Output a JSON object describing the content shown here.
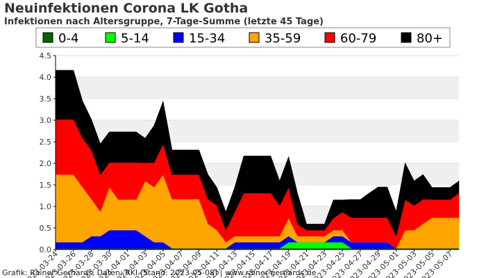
{
  "chart_data": {
    "type": "area",
    "stacked": true,
    "title": "Neuinfektionen Corona LK Gotha",
    "subtitle": "Infektionen nach Altersgruppe, 7-Tage-Summe (letzte 45 Tage)",
    "credit": "Grafik: Rainer Gerhards, Daten: RKI (Stand: 2023-05-08) | www.rainer-gerhards.de",
    "ylim": [
      0,
      4.5
    ],
    "yticks": [
      "0.0",
      "0.5",
      "1.0",
      "1.5",
      "2.0",
      "2.5",
      "3.0",
      "3.5",
      "4.0",
      "4.5"
    ],
    "x": [
      "2023-03-24",
      "2023-03-25",
      "2023-03-26",
      "2023-03-27",
      "2023-03-28",
      "2023-03-29",
      "2023-03-30",
      "2023-03-31",
      "2023-04-01",
      "2023-04-02",
      "2023-04-03",
      "2023-04-04",
      "2023-04-05",
      "2023-04-06",
      "2023-04-07",
      "2023-04-08",
      "2023-04-09",
      "2023-04-10",
      "2023-04-11",
      "2023-04-12",
      "2023-04-13",
      "2023-04-14",
      "2023-04-15",
      "2023-04-16",
      "2023-04-17",
      "2023-04-18",
      "2023-04-19",
      "2023-04-20",
      "2023-04-21",
      "2023-04-22",
      "2023-04-23",
      "2023-04-24",
      "2023-04-25",
      "2023-04-26",
      "2023-04-27",
      "2023-04-28",
      "2023-04-29",
      "2023-04-30",
      "2023-05-01",
      "2023-05-02",
      "2023-05-03",
      "2023-05-04",
      "2023-05-05",
      "2023-05-06",
      "2023-05-07",
      "2023-05-08"
    ],
    "xtick_labels": [
      "2023-03-24",
      "2023-03-26",
      "2023-03-28",
      "2023-03-30",
      "2023-04-01",
      "2023-04-03",
      "2023-04-05",
      "2023-04-07",
      "2023-04-09",
      "2023-04-11",
      "2023-04-13",
      "2023-04-15",
      "2023-04-17",
      "2023-04-19",
      "2023-04-21",
      "2023-04-23",
      "2023-04-25",
      "2023-04-27",
      "2023-04-29",
      "2023-05-01",
      "2023-05-03",
      "2023-05-05",
      "2023-05-07"
    ],
    "legend_position": "top",
    "series": [
      {
        "name": "0-4",
        "color": "#006400",
        "values": [
          0.03,
          0.03,
          0.03,
          0.03,
          0.03,
          0.03,
          0.03,
          0.03,
          0.03,
          0.03,
          0.03,
          0.03,
          0.03,
          0.03,
          0.03,
          0.03,
          0.03,
          0.03,
          0.03,
          0.03,
          0.03,
          0.03,
          0.03,
          0.03,
          0.03,
          0.03,
          0.03,
          0.03,
          0.03,
          0.03,
          0.03,
          0.03,
          0.03,
          0.03,
          0.03,
          0.03,
          0.03,
          0.03,
          0.03,
          0.03,
          0.03,
          0.03,
          0.03,
          0.03,
          0.03,
          0.03
        ]
      },
      {
        "name": "5-14",
        "color": "#00ff00",
        "values": [
          0,
          0,
          0,
          0,
          0,
          0,
          0,
          0,
          0,
          0,
          0,
          0,
          0,
          0,
          0,
          0,
          0,
          0,
          0,
          0,
          0,
          0,
          0,
          0,
          0,
          0,
          0.14,
          0.14,
          0.14,
          0.14,
          0.14,
          0.14,
          0.14,
          0,
          0,
          0,
          0,
          0,
          0,
          0,
          0,
          0,
          0,
          0,
          0,
          0
        ]
      },
      {
        "name": "15-34",
        "color": "#0000ff",
        "values": [
          0.14,
          0.14,
          0.14,
          0.14,
          0.28,
          0.28,
          0.42,
          0.42,
          0.42,
          0.42,
          0.28,
          0.14,
          0.14,
          0,
          0,
          0,
          0,
          0,
          0,
          0,
          0.14,
          0.14,
          0.14,
          0.14,
          0.14,
          0.14,
          0.14,
          0,
          0,
          0,
          0,
          0.14,
          0.14,
          0.14,
          0.14,
          0.14,
          0.14,
          0.14,
          0,
          0,
          0,
          0,
          0,
          0,
          0,
          0
        ]
      },
      {
        "name": "35-59",
        "color": "#ffa500",
        "values": [
          1.57,
          1.57,
          1.57,
          1.28,
          0.86,
          0.57,
          1.0,
          0.71,
          0.71,
          0.71,
          1.28,
          1.28,
          1.57,
          1.14,
          1.14,
          1.14,
          1.14,
          0.57,
          0.42,
          0.14,
          0.14,
          0.14,
          0.14,
          0.14,
          0.14,
          0.14,
          0.42,
          0.14,
          0.14,
          0.14,
          0.14,
          0.14,
          0.14,
          0,
          0,
          0,
          0,
          0,
          0,
          0.42,
          0.42,
          0.57,
          0.71,
          0.71,
          0.71,
          0.71
        ]
      },
      {
        "name": "60-79",
        "color": "#ff0000",
        "values": [
          1.28,
          1.28,
          1.28,
          1.14,
          1.14,
          0.86,
          0.57,
          0.86,
          0.86,
          0.86,
          0.42,
          0.57,
          0.71,
          0.57,
          0.57,
          0.57,
          0.57,
          0.57,
          0.57,
          0.28,
          0.57,
          1.0,
          1.0,
          1.0,
          1.0,
          0.71,
          0.71,
          0.28,
          0.14,
          0.14,
          0.14,
          0.28,
          0.42,
          0.57,
          0.57,
          0.57,
          0.57,
          0.57,
          0.28,
          0.71,
          0.57,
          0.57,
          0.42,
          0.42,
          0.42,
          0.57
        ]
      },
      {
        "name": "80+",
        "color": "#000000",
        "values": [
          1.14,
          1.14,
          1.14,
          0.86,
          0.71,
          0.71,
          0.71,
          0.71,
          0.71,
          0.71,
          0.57,
          0.86,
          0.99,
          0.57,
          0.57,
          0.57,
          0.57,
          0.57,
          0.42,
          0.42,
          0.57,
          0.86,
          0.86,
          0.86,
          0.86,
          0.57,
          0.71,
          0.71,
          0.14,
          0.14,
          0.14,
          0.42,
          0.28,
          0.42,
          0.42,
          0.57,
          0.71,
          0.71,
          0.57,
          0.85,
          0.57,
          0.57,
          0.28,
          0.28,
          0.28,
          0.28
        ]
      }
    ]
  }
}
